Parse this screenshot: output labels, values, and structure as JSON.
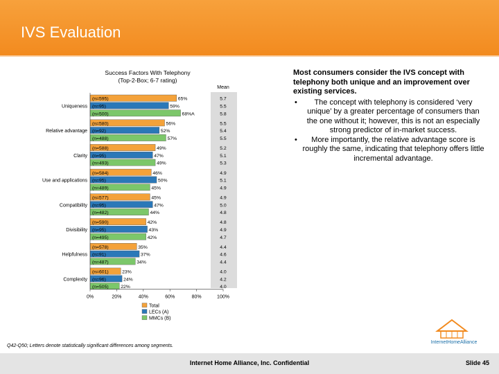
{
  "header": {
    "title": "IVS Evaluation"
  },
  "chart_data": {
    "type": "bar",
    "orientation": "horizontal",
    "title": "Success Factors With Telephony",
    "subtitle": "(Top-2-Box; 6-7 rating)",
    "mean_header": "Mean",
    "xlim": [
      0,
      100
    ],
    "x_ticks": [
      "0%",
      "20%",
      "40%",
      "60%",
      "80%",
      "100%"
    ],
    "series": [
      {
        "name": "Total",
        "color": "#f4a23a"
      },
      {
        "name": "LECs (A)",
        "color": "#2b78b8"
      },
      {
        "name": "MMCs (B)",
        "color": "#7cc76a"
      }
    ],
    "groups": [
      {
        "category": "Uniqueness",
        "n": [
          "(n=595)",
          "(n=95)",
          "(n=500)"
        ],
        "values": [
          65,
          59,
          68
        ],
        "labels": [
          "65%",
          "59%",
          "68%A"
        ],
        "means": [
          "5.7",
          "5.5",
          "5.8"
        ]
      },
      {
        "category": "Relative advantage",
        "n": [
          "(n=580)",
          "(n=92)",
          "(n=488)"
        ],
        "values": [
          56,
          52,
          57
        ],
        "labels": [
          "56%",
          "52%",
          "57%"
        ],
        "means": [
          "5.5",
          "5.4",
          "5.5"
        ]
      },
      {
        "category": "Clarity",
        "n": [
          "(n=588)",
          "(n=95)",
          "(n=493)"
        ],
        "values": [
          49,
          47,
          49
        ],
        "labels": [
          "49%",
          "47%",
          "49%"
        ],
        "means": [
          "5.2",
          "5.1",
          "5.3"
        ]
      },
      {
        "category": "Use and applications",
        "n": [
          "(n=584)",
          "(n=95)",
          "(n=489)"
        ],
        "values": [
          46,
          50,
          45
        ],
        "labels": [
          "46%",
          "50%",
          "45%"
        ],
        "means": [
          "4.9",
          "5.1",
          "4.9"
        ]
      },
      {
        "category": "Compatibility",
        "n": [
          "(n=577)",
          "(n=95)",
          "(n=482)"
        ],
        "values": [
          45,
          47,
          44
        ],
        "labels": [
          "45%",
          "47%",
          "44%"
        ],
        "means": [
          "4.9",
          "5.0",
          "4.8"
        ]
      },
      {
        "category": "Divisibility",
        "n": [
          "(n=590)",
          "(n=95)",
          "(n=495)"
        ],
        "values": [
          42,
          43,
          42
        ],
        "labels": [
          "42%",
          "43%",
          "42%"
        ],
        "means": [
          "4.8",
          "4.9",
          "4.7"
        ]
      },
      {
        "category": "Helpfulness",
        "n": [
          "(n=578)",
          "(n=91)",
          "(n=487)"
        ],
        "values": [
          35,
          37,
          34
        ],
        "labels": [
          "35%",
          "37%",
          "34%"
        ],
        "means": [
          "4.4",
          "4.6",
          "4.4"
        ]
      },
      {
        "category": "Complexity",
        "n": [
          "(n=601)",
          "(n=96)",
          "(n=505)"
        ],
        "values": [
          23,
          24,
          22
        ],
        "labels": [
          "23%",
          "24%",
          "22%"
        ],
        "means": [
          "4.0",
          "4.2",
          "4.0"
        ]
      }
    ]
  },
  "summary": {
    "lead": "Most consumers consider the IVS concept with telephony both unique and an improvement over existing services.",
    "bullets": [
      "The concept with telephony is considered ‘very unique’ by a greater percentage of consumers than the one without it; however, this is not an especially strong predictor of in-market success.",
      "More importantly, the relative advantage score is roughly the same, indicating that telephony offers little incremental advantage."
    ]
  },
  "footnote": "Q42-Q50; Letters denote statistically significant differences among segments.",
  "footer": {
    "confidential": "Internet Home Alliance, Inc. Confidential",
    "slide": "Slide 45"
  },
  "logo": {
    "name": "InternetHomeAlliance"
  }
}
